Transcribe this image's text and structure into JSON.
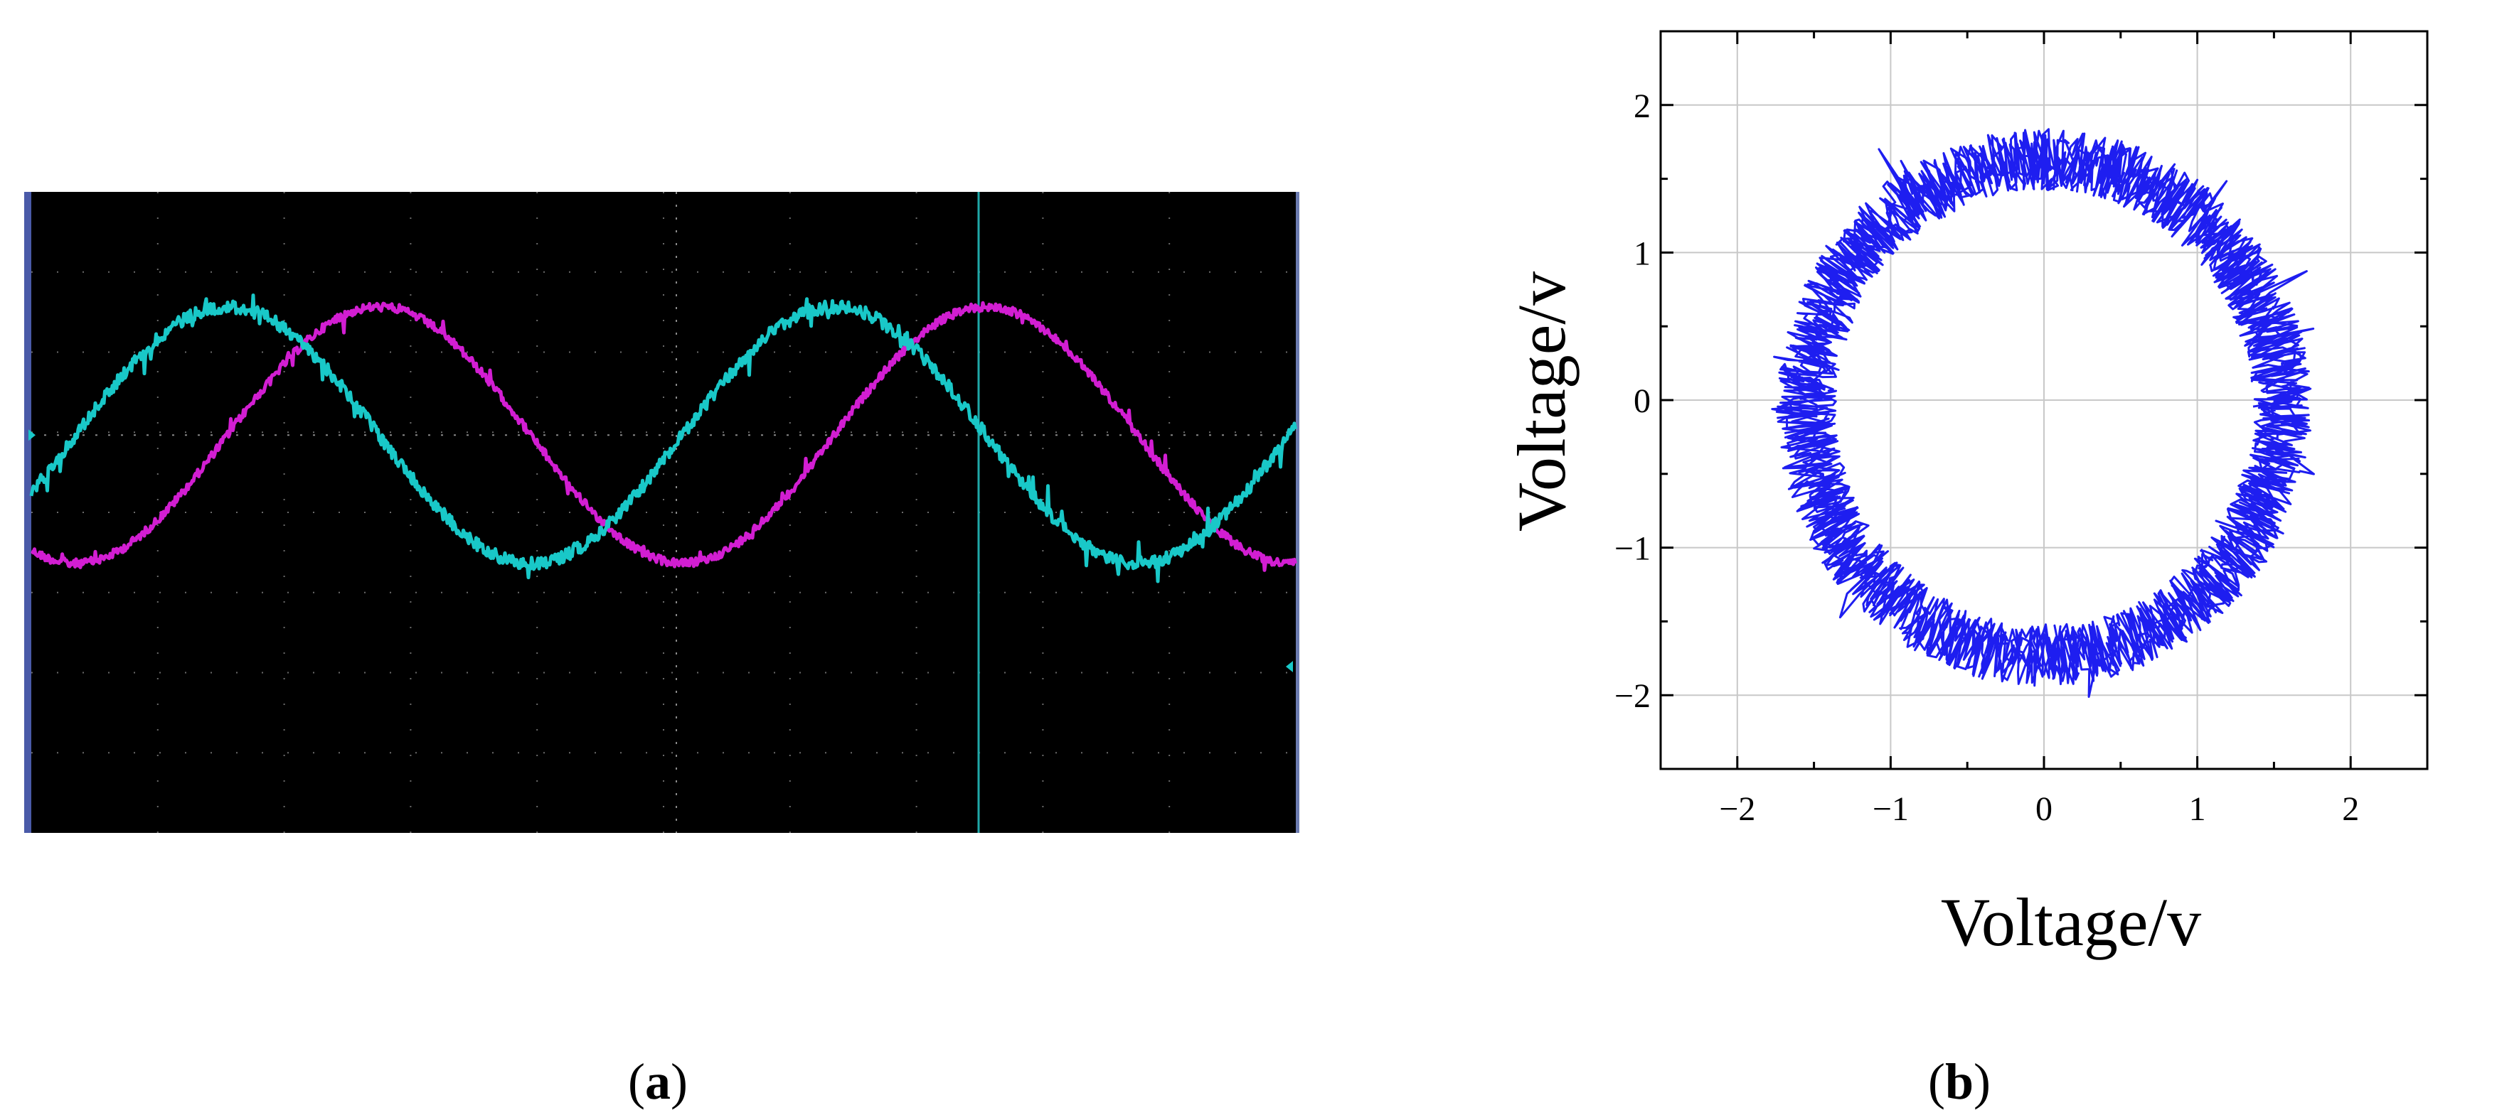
{
  "panels": {
    "a": {
      "label_open": "(",
      "label_letter": "a",
      "label_close": ")"
    },
    "b": {
      "label_open": "(",
      "label_letter": "b",
      "label_close": ")"
    }
  },
  "chart_data": [
    {
      "panel": "a",
      "type": "line",
      "description_style": "oscilloscope",
      "background": "#000000",
      "grid": true,
      "x_divisions": 10,
      "y_divisions": 8,
      "series": [
        {
          "color": "#19c8c8",
          "amplitude_div": 1.6,
          "period_div": 4.8,
          "phase_div": 1.55,
          "noise": "high"
        },
        {
          "color": "#d21ed2",
          "amplitude_div": 1.6,
          "period_div": 4.8,
          "phase_div": 2.75,
          "noise": "medium"
        }
      ]
    },
    {
      "panel": "b",
      "type": "scatter",
      "xlabel": "Voltage/v",
      "ylabel": "Voltage/v",
      "xlim": [
        -2.5,
        2.5
      ],
      "ylim": [
        -2.5,
        2.5
      ],
      "x_ticks": [
        -2,
        -1,
        0,
        1,
        2
      ],
      "y_ticks": [
        -2,
        -1,
        0,
        1,
        2
      ],
      "x_tick_labels": [
        "−2",
        "−1",
        "0",
        "1",
        "2"
      ],
      "y_tick_labels": [
        "−2",
        "−1",
        "0",
        "1",
        "2"
      ],
      "grid": true,
      "series": [
        {
          "color": "#1e1ef0",
          "shape": "noisy ring (Lissajous)",
          "center": [
            0.0,
            -0.05
          ],
          "radius_x": 1.55,
          "radius_y": 1.68,
          "ring_thickness": 0.4
        }
      ]
    }
  ]
}
